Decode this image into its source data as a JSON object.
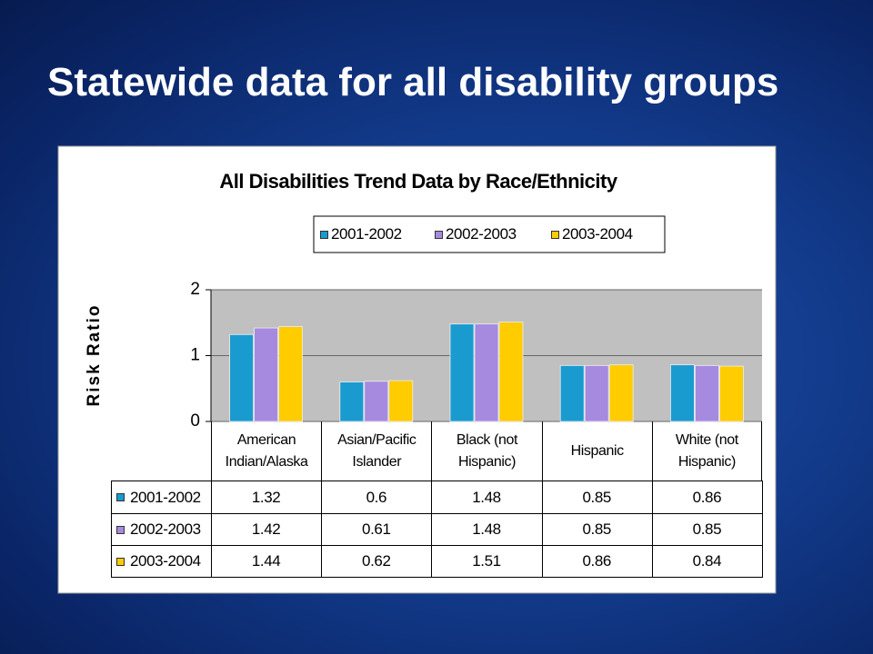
{
  "slide_title": "Statewide data for all disability groups",
  "chart_data": {
    "type": "bar",
    "title": "All Disabilities Trend Data by Race/Ethnicity",
    "y_label": "Risk Ratio",
    "categories": [
      "American Indian/Alaska",
      "Asian/Pacific Islander",
      "Black (not Hispanic)",
      "Hispanic",
      "White (not Hispanic)"
    ],
    "series": [
      {
        "name": "2001-2002",
        "color": "#1a9bd0",
        "values": [
          1.32,
          0.6,
          1.48,
          0.85,
          0.86
        ]
      },
      {
        "name": "2002-2003",
        "color": "#a68ae0",
        "values": [
          1.42,
          0.61,
          1.48,
          0.85,
          0.85
        ]
      },
      {
        "name": "2003-2004",
        "color": "#ffcc00",
        "values": [
          1.44,
          0.62,
          1.51,
          0.86,
          0.84
        ]
      }
    ],
    "ylim": [
      0,
      2
    ],
    "yticks": [
      0,
      1,
      2
    ],
    "grid": true,
    "legend": "top",
    "data_table": true
  }
}
